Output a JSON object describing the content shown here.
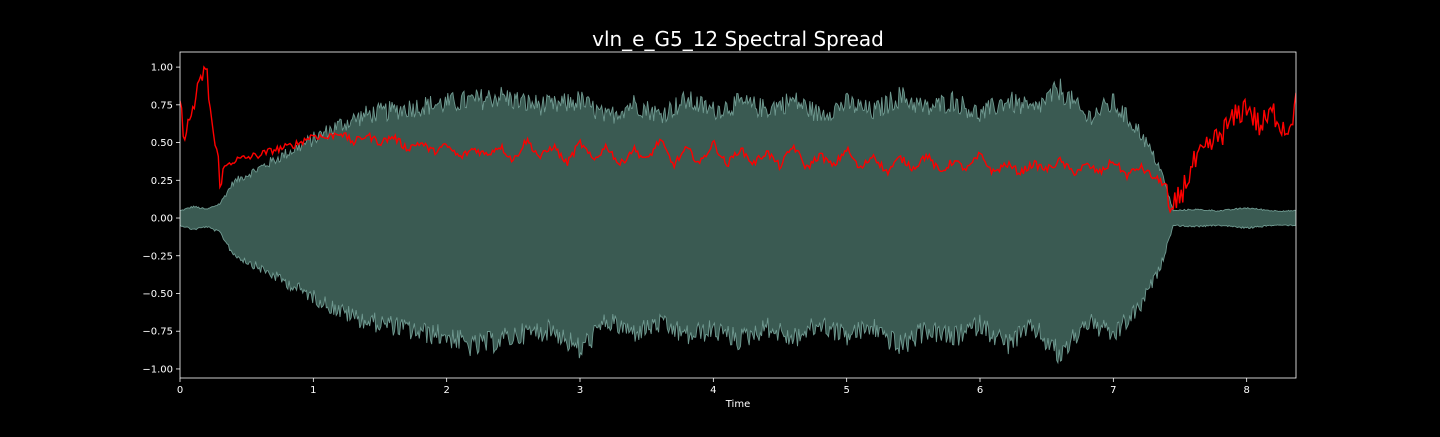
{
  "chart_data": {
    "type": "area",
    "title": "vln_e_G5_12 Spectral Spread",
    "xlabel": "Time",
    "ylabel": "",
    "xlim": [
      0,
      8.37
    ],
    "ylim": [
      -1.06,
      1.1
    ],
    "x_ticks": [
      0,
      1,
      2,
      3,
      4,
      5,
      6,
      7,
      8
    ],
    "x_tick_labels": [
      "0",
      "1",
      "2",
      "3",
      "4",
      "5",
      "6",
      "7",
      "8"
    ],
    "y_ticks": [
      1.0,
      0.75,
      0.5,
      0.25,
      0.0,
      -0.25,
      -0.5,
      -0.75,
      -1.0
    ],
    "y_tick_labels": [
      "1.00",
      "0.75",
      "0.50",
      "0.25",
      "0.00",
      "−0.25",
      "−0.50",
      "−0.75",
      "−1.00"
    ],
    "grid": false,
    "background": "#000000",
    "series": [
      {
        "kind": "waveform-envelope",
        "color": "#3a5a52",
        "edge_color": "#6f9990",
        "x": [
          0.0,
          0.1,
          0.2,
          0.3,
          0.4,
          0.6,
          0.8,
          1.0,
          1.2,
          1.4,
          1.6,
          1.8,
          2.0,
          2.2,
          2.4,
          2.6,
          2.8,
          3.0,
          3.2,
          3.4,
          3.6,
          3.8,
          4.0,
          4.2,
          4.4,
          4.6,
          4.8,
          5.0,
          5.2,
          5.4,
          5.6,
          5.8,
          6.0,
          6.2,
          6.4,
          6.6,
          6.8,
          7.0,
          7.2,
          7.35,
          7.45,
          7.6,
          7.8,
          8.0,
          8.2,
          8.37
        ],
        "upper": [
          0.05,
          0.08,
          0.06,
          0.1,
          0.25,
          0.35,
          0.45,
          0.55,
          0.65,
          0.72,
          0.75,
          0.78,
          0.8,
          0.82,
          0.85,
          0.8,
          0.78,
          0.82,
          0.7,
          0.8,
          0.72,
          0.82,
          0.75,
          0.8,
          0.76,
          0.82,
          0.72,
          0.8,
          0.74,
          0.85,
          0.76,
          0.82,
          0.72,
          0.82,
          0.75,
          0.9,
          0.7,
          0.8,
          0.6,
          0.35,
          0.05,
          0.06,
          0.05,
          0.07,
          0.05,
          0.05
        ],
        "lower": [
          -0.05,
          -0.08,
          -0.06,
          -0.1,
          -0.25,
          -0.35,
          -0.45,
          -0.55,
          -0.65,
          -0.72,
          -0.75,
          -0.8,
          -0.82,
          -0.9,
          -0.85,
          -0.8,
          -0.78,
          -0.92,
          -0.72,
          -0.8,
          -0.74,
          -0.82,
          -0.78,
          -0.85,
          -0.76,
          -0.84,
          -0.74,
          -0.82,
          -0.76,
          -0.9,
          -0.78,
          -0.84,
          -0.74,
          -0.88,
          -0.76,
          -0.96,
          -0.72,
          -0.82,
          -0.62,
          -0.35,
          -0.05,
          -0.06,
          -0.05,
          -0.07,
          -0.05,
          -0.05
        ]
      },
      {
        "kind": "line",
        "color": "#ff0000",
        "x": [
          0.0,
          0.05,
          0.1,
          0.15,
          0.17,
          0.2,
          0.25,
          0.3,
          0.35,
          0.4,
          0.5,
          0.6,
          0.7,
          0.8,
          0.9,
          1.0,
          1.1,
          1.2,
          1.3,
          1.4,
          1.5,
          1.6,
          1.7,
          1.8,
          1.9,
          2.0,
          2.1,
          2.2,
          2.3,
          2.4,
          2.5,
          2.6,
          2.7,
          2.8,
          2.9,
          3.0,
          3.1,
          3.2,
          3.3,
          3.4,
          3.5,
          3.6,
          3.7,
          3.8,
          3.9,
          4.0,
          4.1,
          4.2,
          4.3,
          4.4,
          4.5,
          4.6,
          4.7,
          4.8,
          4.9,
          5.0,
          5.1,
          5.2,
          5.3,
          5.4,
          5.5,
          5.6,
          5.7,
          5.8,
          5.9,
          6.0,
          6.1,
          6.2,
          6.3,
          6.4,
          6.5,
          6.6,
          6.7,
          6.8,
          6.9,
          7.0,
          7.1,
          7.2,
          7.3,
          7.4,
          7.42,
          7.5,
          7.6,
          7.7,
          7.8,
          7.9,
          8.0,
          8.1,
          8.2,
          8.3,
          8.37
        ],
        "y": [
          0.7,
          0.55,
          0.75,
          0.85,
          0.98,
          0.95,
          0.55,
          0.28,
          0.35,
          0.38,
          0.4,
          0.42,
          0.45,
          0.47,
          0.5,
          0.55,
          0.53,
          0.57,
          0.5,
          0.55,
          0.5,
          0.54,
          0.46,
          0.5,
          0.44,
          0.48,
          0.4,
          0.46,
          0.42,
          0.48,
          0.38,
          0.52,
          0.4,
          0.48,
          0.36,
          0.5,
          0.38,
          0.48,
          0.35,
          0.46,
          0.38,
          0.52,
          0.35,
          0.46,
          0.36,
          0.5,
          0.35,
          0.46,
          0.36,
          0.44,
          0.34,
          0.48,
          0.33,
          0.42,
          0.34,
          0.46,
          0.32,
          0.42,
          0.3,
          0.4,
          0.33,
          0.42,
          0.3,
          0.38,
          0.32,
          0.42,
          0.3,
          0.36,
          0.3,
          0.36,
          0.32,
          0.38,
          0.3,
          0.35,
          0.3,
          0.38,
          0.28,
          0.34,
          0.27,
          0.22,
          0.01,
          0.15,
          0.35,
          0.45,
          0.55,
          0.65,
          0.75,
          0.6,
          0.7,
          0.58,
          0.75
        ]
      }
    ]
  }
}
